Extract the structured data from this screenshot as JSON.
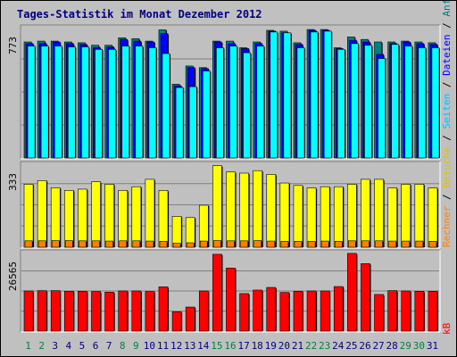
{
  "chart_data": {
    "type": "bar",
    "title": "Tages-Statistik im Monat Dezember 2012",
    "categories": [
      "1",
      "2",
      "3",
      "4",
      "5",
      "6",
      "7",
      "8",
      "9",
      "10",
      "11",
      "12",
      "13",
      "14",
      "15",
      "16",
      "17",
      "18",
      "19",
      "20",
      "21",
      "22",
      "23",
      "24",
      "25",
      "26",
      "27",
      "28",
      "29",
      "30",
      "31"
    ],
    "weekend_color": "#008040",
    "weekday_color": "#000080",
    "weekend_days": [
      "1",
      "2",
      "8",
      "9",
      "15",
      "16",
      "22",
      "23",
      "29",
      "30"
    ],
    "panels": [
      {
        "ymax_label": "773",
        "ymax": 773,
        "right_label": [
          "Anfragen",
          "Dateien",
          "Seiten"
        ],
        "right_label_colors": [
          "#008080",
          "#0000ff",
          "#00c0ff"
        ],
        "series": [
          {
            "name": "Anfragen",
            "color": "#008080",
            "values": [
              700,
              705,
              705,
              700,
              695,
              680,
              680,
              725,
              720,
              705,
              773,
              445,
              555,
              545,
              705,
              705,
              665,
              700,
              770,
              765,
              695,
              775,
              775,
              665,
              730,
              715,
              700,
              700,
              705,
              700,
              695
            ]
          },
          {
            "name": "Dateien",
            "color": "#0000ff",
            "values": [
              690,
              690,
              700,
              690,
              685,
              665,
              670,
              715,
              705,
              700,
              750,
              435,
              545,
              540,
              700,
              690,
              660,
              690,
              765,
              755,
              685,
              770,
              770,
              660,
              710,
              700,
              625,
              690,
              700,
              690,
              685
            ]
          },
          {
            "name": "Seiten",
            "color": "#00ffff",
            "values": [
              675,
              675,
              675,
              670,
              670,
              655,
              655,
              675,
              675,
              665,
              630,
              425,
              430,
              525,
              665,
              675,
              635,
              675,
              760,
              755,
              665,
              760,
              765,
              655,
              690,
              680,
              600,
              685,
              675,
              665,
              665
            ]
          }
        ]
      },
      {
        "ymax_label": "333",
        "ymax": 333,
        "right_label": [
          "Besuche",
          "Rechner"
        ],
        "right_label_colors": [
          "#e0c000",
          "#ff8000"
        ],
        "series": [
          {
            "name": "Besuche",
            "color": "#ffff00",
            "values": [
              255,
              270,
              241,
              230,
              235,
              265,
              255,
              230,
              245,
              275,
              230,
              125,
              120,
              170,
              330,
              305,
              300,
              310,
              295,
              260,
              250,
              240,
              245,
              245,
              255,
              275,
              275,
              240,
              255,
              255,
              240
            ]
          },
          {
            "name": "Rechner",
            "color": "#ff8000",
            "values": [
              26,
              26,
              27,
              27,
              26,
              26,
              25,
              26,
              26,
              25,
              24,
              16,
              18,
              25,
              27,
              26,
              26,
              27,
              25,
              24,
              24,
              24,
              25,
              24,
              26,
              26,
              26,
              25,
              25,
              25,
              24
            ]
          }
        ]
      },
      {
        "ymax_label": "26565",
        "ymax": 26565,
        "right_label": [
          "kB"
        ],
        "right_label_colors": [
          "#ff0000"
        ],
        "series": [
          {
            "name": "kB",
            "color": "#ff0000",
            "values": [
              13700,
              13800,
              13800,
              13600,
              13600,
              13500,
              13300,
              13700,
              13700,
              13500,
              15100,
              6600,
              8200,
              13700,
              26200,
              21500,
              12800,
              14000,
              14900,
              13200,
              13600,
              13700,
              13700,
              15200,
              26500,
              23000,
              12500,
              13800,
              13700,
              13600,
              13600
            ]
          }
        ]
      }
    ]
  }
}
